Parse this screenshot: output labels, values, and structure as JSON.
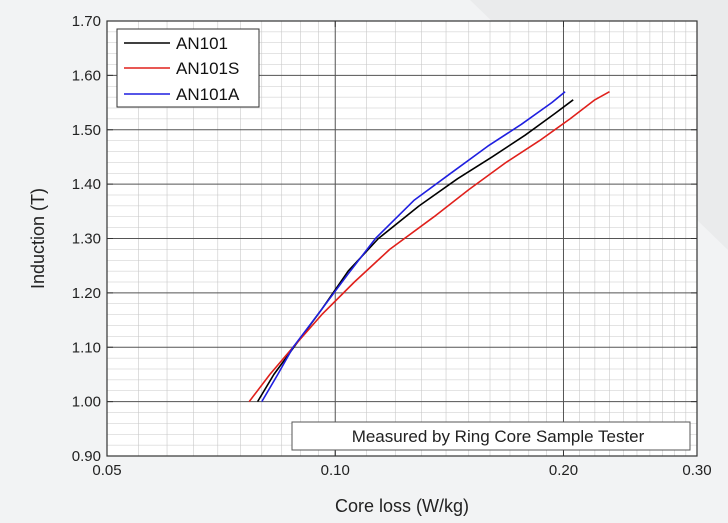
{
  "chart_data": {
    "type": "line",
    "xlabel": "Core loss (W/kg)",
    "ylabel": "Induction (T)",
    "x_scale": "log",
    "xlim": [
      0.05,
      0.3
    ],
    "ylim": [
      0.9,
      1.7
    ],
    "x_ticks": [
      "0.05",
      "0.10",
      "0.20",
      "0.30"
    ],
    "x_tick_values": [
      0.05,
      0.1,
      0.2,
      0.3
    ],
    "y_ticks": [
      "0.90",
      "1.00",
      "1.10",
      "1.20",
      "1.30",
      "1.40",
      "1.50",
      "1.60",
      "1.70"
    ],
    "y_tick_values": [
      0.9,
      1.0,
      1.1,
      1.2,
      1.3,
      1.4,
      1.5,
      1.6,
      1.7
    ],
    "grid": true,
    "legend_position": "top-left",
    "annotation": "Measured by Ring Core Sample Tester",
    "series": [
      {
        "name": "AN101",
        "color": "#000000",
        "points": [
          [
            0.079,
            1.0
          ],
          [
            0.083,
            1.05
          ],
          [
            0.0882,
            1.1
          ],
          [
            0.096,
            1.17
          ],
          [
            0.104,
            1.24
          ],
          [
            0.114,
            1.3
          ],
          [
            0.129,
            1.36
          ],
          [
            0.145,
            1.41
          ],
          [
            0.161,
            1.45
          ],
          [
            0.178,
            1.49
          ],
          [
            0.195,
            1.53
          ],
          [
            0.206,
            1.555
          ]
        ]
      },
      {
        "name": "AN101S",
        "color": "#e0201b",
        "points": [
          [
            0.077,
            1.0
          ],
          [
            0.082,
            1.05
          ],
          [
            0.088,
            1.1
          ],
          [
            0.096,
            1.16
          ],
          [
            0.106,
            1.22
          ],
          [
            0.118,
            1.28
          ],
          [
            0.135,
            1.34
          ],
          [
            0.15,
            1.39
          ],
          [
            0.168,
            1.44
          ],
          [
            0.186,
            1.48
          ],
          [
            0.204,
            1.52
          ],
          [
            0.22,
            1.555
          ],
          [
            0.23,
            1.57
          ]
        ]
      },
      {
        "name": "AN101A",
        "color": "#1f1fe0",
        "points": [
          [
            0.08,
            1.0
          ],
          [
            0.084,
            1.05
          ],
          [
            0.088,
            1.1
          ],
          [
            0.096,
            1.17
          ],
          [
            0.104,
            1.235
          ],
          [
            0.113,
            1.3
          ],
          [
            0.127,
            1.37
          ],
          [
            0.142,
            1.42
          ],
          [
            0.159,
            1.47
          ],
          [
            0.176,
            1.51
          ],
          [
            0.193,
            1.55
          ],
          [
            0.201,
            1.57
          ]
        ]
      }
    ]
  }
}
